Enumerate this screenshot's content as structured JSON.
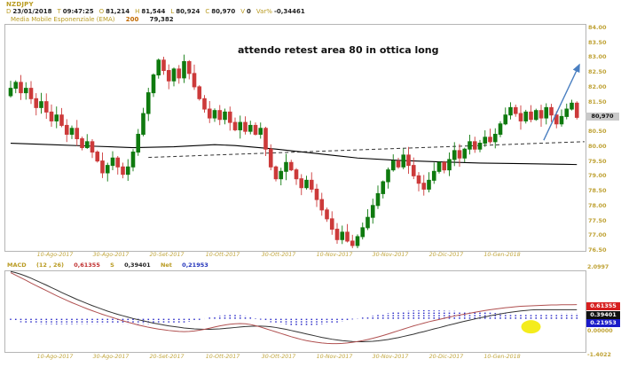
{
  "header": {
    "symbol": "NZDJPY",
    "quote_fields": [
      {
        "label": "D",
        "value": "23/01/2018"
      },
      {
        "label": "T",
        "value": "09:47:25"
      },
      {
        "label": "O",
        "value": "81,214"
      },
      {
        "label": "H",
        "value": "81,544"
      },
      {
        "label": "L",
        "value": "80,924"
      },
      {
        "label": "C",
        "value": "80,970"
      },
      {
        "label": "V",
        "value": "0"
      },
      {
        "label": "Var%",
        "value": "-0,34461"
      }
    ],
    "indicator_line": {
      "name": "Media Mobile Esponenziale (EMA)",
      "period": "200",
      "value": "79,382"
    }
  },
  "annotation": {
    "text": "attendo retest area 80 in ottica long"
  },
  "price_axis": {
    "ticks": [
      {
        "v": 84.0,
        "label": "84.00"
      },
      {
        "v": 83.5,
        "label": "83.50"
      },
      {
        "v": 83.0,
        "label": "83.00"
      },
      {
        "v": 82.5,
        "label": "82.50"
      },
      {
        "v": 82.0,
        "label": "82.00"
      },
      {
        "v": 81.5,
        "label": "81.50"
      },
      {
        "v": 80.5,
        "label": "80.50"
      },
      {
        "v": 80.0,
        "label": "80.00"
      },
      {
        "v": 79.5,
        "label": "79.50"
      },
      {
        "v": 79.0,
        "label": "79.00"
      },
      {
        "v": 78.5,
        "label": "78.50"
      },
      {
        "v": 78.0,
        "label": "78.00"
      },
      {
        "v": 77.5,
        "label": "77.50"
      },
      {
        "v": 77.0,
        "label": "77.00"
      },
      {
        "v": 76.5,
        "label": "76.50"
      }
    ],
    "last_price_label": "80,970",
    "last_price_value": 80.97
  },
  "dates": [
    "10-Ago-2017",
    "30-Ago-2017",
    "20-Set-2017",
    "10-Ott-2017",
    "30-Ott-2017",
    "10-Nov-2017",
    "30-Nov-2017",
    "20-Dic-2017",
    "10-Gen-2018"
  ],
  "macd_header": {
    "name": "MACD",
    "params": "(12 , 26)",
    "macd_value": "0,61355",
    "signal_label": "S",
    "signal_value": "0,39401",
    "net_label": "Net",
    "net_value": "0,21953"
  },
  "macd_axis": {
    "top_label": "2.0997",
    "bottom_label": "-1.4022",
    "zero_label": "0.00000",
    "boxes": [
      {
        "label": "0.61355",
        "color": "#d62020"
      },
      {
        "label": "0.39401",
        "color": "#111111"
      },
      {
        "label": "0.21953",
        "color": "#1a1ac8"
      }
    ]
  },
  "colors": {
    "accent_yellow": "#b99b22",
    "candle_up": "#0f7a0f",
    "candle_down": "#cc3a3a",
    "ema_line": "#000000",
    "trendline": "#333333",
    "macd_line": "#b05050",
    "signal_line": "#333333",
    "histogram": "#2a2ac8",
    "arrow_blue": "#4a7fc1",
    "highlight_yellow": "#f4ec1c",
    "last_price_bg": "#c9c9c9"
  },
  "chart_data": [
    {
      "type": "candlestick",
      "title": "NZDJPY daily with EMA(200)",
      "x_axis_labels": [
        "10-Ago-2017",
        "30-Ago-2017",
        "20-Set-2017",
        "10-Ott-2017",
        "30-Ott-2017",
        "10-Nov-2017",
        "30-Nov-2017",
        "20-Dic-2017",
        "10-Gen-2018"
      ],
      "ylim": [
        76.5,
        84.0
      ],
      "first_open": 81.7,
      "closes": [
        81.95,
        82.15,
        81.8,
        81.95,
        81.6,
        81.3,
        81.5,
        81.15,
        80.85,
        81.05,
        80.7,
        80.4,
        80.6,
        80.25,
        79.95,
        80.15,
        79.8,
        79.5,
        79.1,
        79.35,
        79.6,
        79.3,
        79.05,
        79.3,
        79.8,
        80.4,
        81.1,
        81.8,
        82.4,
        82.9,
        82.55,
        82.2,
        82.6,
        82.3,
        82.85,
        82.45,
        82.0,
        81.6,
        81.25,
        80.95,
        81.2,
        80.9,
        81.15,
        80.8,
        80.55,
        80.8,
        80.5,
        80.7,
        80.4,
        80.6,
        79.9,
        79.3,
        78.9,
        79.15,
        79.45,
        79.2,
        78.9,
        78.6,
        78.85,
        78.55,
        78.2,
        77.85,
        77.55,
        77.2,
        76.85,
        77.1,
        76.8,
        76.65,
        76.95,
        77.25,
        77.6,
        78.0,
        78.4,
        78.8,
        79.2,
        79.5,
        79.3,
        79.7,
        79.35,
        79.0,
        78.75,
        78.55,
        78.85,
        79.15,
        79.45,
        79.2,
        79.55,
        79.85,
        79.6,
        79.9,
        80.15,
        79.9,
        80.1,
        80.3,
        80.15,
        80.4,
        80.75,
        81.05,
        81.3,
        81.1,
        80.85,
        81.15,
        80.9,
        81.2,
        80.95,
        81.3,
        81.05,
        80.75,
        81.0,
        81.25,
        81.45,
        80.97
      ],
      "ema200_points": [
        [
          0,
          80.1
        ],
        [
          8,
          80.05
        ],
        [
          16,
          80.0
        ],
        [
          24,
          79.95
        ],
        [
          32,
          79.98
        ],
        [
          40,
          80.05
        ],
        [
          44,
          80.02
        ],
        [
          52,
          79.9
        ],
        [
          60,
          79.75
        ],
        [
          68,
          79.6
        ],
        [
          76,
          79.52
        ],
        [
          84,
          79.47
        ],
        [
          92,
          79.43
        ],
        [
          100,
          79.41
        ],
        [
          108,
          79.39
        ],
        [
          111,
          79.38
        ]
      ],
      "trendline_dashed": {
        "from_index": 27,
        "from_price": 79.62,
        "to_index": 112.5,
        "to_price": 80.15
      },
      "arrow": {
        "from_index": 104.5,
        "from_price": 80.2,
        "to_index": 111.5,
        "to_price": 82.75
      }
    },
    {
      "type": "line+histogram",
      "title": "MACD (12, 26)",
      "ylim": [
        -1.4022,
        2.0997
      ],
      "series": [
        {
          "name": "MACD",
          "values": [
            2.0,
            1.89,
            1.78,
            1.67,
            1.55,
            1.44,
            1.33,
            1.22,
            1.11,
            1.0,
            0.9,
            0.8,
            0.7,
            0.61,
            0.52,
            0.43,
            0.35,
            0.27,
            0.19,
            0.12,
            0.05,
            -0.02,
            -0.09,
            -0.15,
            -0.21,
            -0.27,
            -0.32,
            -0.37,
            -0.41,
            -0.45,
            -0.48,
            -0.51,
            -0.53,
            -0.55,
            -0.56,
            -0.55,
            -0.53,
            -0.5,
            -0.46,
            -0.41,
            -0.36,
            -0.31,
            -0.27,
            -0.24,
            -0.22,
            -0.21,
            -0.22,
            -0.25,
            -0.3,
            -0.36,
            -0.43,
            -0.5,
            -0.57,
            -0.64,
            -0.71,
            -0.78,
            -0.84,
            -0.9,
            -0.95,
            -0.99,
            -1.02,
            -1.05,
            -1.07,
            -1.08,
            -1.08,
            -1.07,
            -1.05,
            -1.02,
            -0.99,
            -0.95,
            -0.9,
            -0.85,
            -0.79,
            -0.73,
            -0.66,
            -0.59,
            -0.52,
            -0.45,
            -0.38,
            -0.31,
            -0.25,
            -0.19,
            -0.13,
            -0.08,
            -0.03,
            0.02,
            0.07,
            0.12,
            0.16,
            0.2,
            0.24,
            0.28,
            0.32,
            0.36,
            0.39,
            0.42,
            0.45,
            0.48,
            0.5,
            0.52,
            0.54,
            0.55,
            0.56,
            0.57,
            0.58,
            0.59,
            0.6,
            0.6,
            0.61,
            0.61,
            0.61,
            0.614
          ]
        },
        {
          "name": "Signal",
          "values": [
            2.05,
            2.0,
            1.93,
            1.85,
            1.76,
            1.66,
            1.56,
            1.46,
            1.35,
            1.25,
            1.14,
            1.04,
            0.94,
            0.84,
            0.75,
            0.66,
            0.57,
            0.49,
            0.41,
            0.33,
            0.26,
            0.19,
            0.13,
            0.07,
            0.01,
            -0.04,
            -0.09,
            -0.14,
            -0.19,
            -0.23,
            -0.27,
            -0.31,
            -0.34,
            -0.37,
            -0.4,
            -0.42,
            -0.44,
            -0.45,
            -0.46,
            -0.46,
            -0.45,
            -0.44,
            -0.42,
            -0.4,
            -0.38,
            -0.36,
            -0.34,
            -0.33,
            -0.32,
            -0.32,
            -0.33,
            -0.35,
            -0.38,
            -0.42,
            -0.46,
            -0.51,
            -0.56,
            -0.61,
            -0.66,
            -0.71,
            -0.76,
            -0.81,
            -0.85,
            -0.89,
            -0.92,
            -0.95,
            -0.97,
            -0.99,
            -1.0,
            -1.0,
            -0.99,
            -0.98,
            -0.96,
            -0.93,
            -0.9,
            -0.86,
            -0.82,
            -0.77,
            -0.72,
            -0.67,
            -0.61,
            -0.56,
            -0.5,
            -0.44,
            -0.39,
            -0.33,
            -0.27,
            -0.22,
            -0.16,
            -0.11,
            -0.06,
            -0.01,
            0.04,
            0.08,
            0.13,
            0.17,
            0.21,
            0.25,
            0.28,
            0.31,
            0.34,
            0.36,
            0.38,
            0.39,
            0.39,
            0.39,
            0.39,
            0.39,
            0.39,
            0.39,
            0.39,
            0.394
          ]
        }
      ],
      "histogram": "MACD-Signal",
      "highlight_circle": {
        "x_index": 102,
        "value": -0.35
      }
    }
  ]
}
